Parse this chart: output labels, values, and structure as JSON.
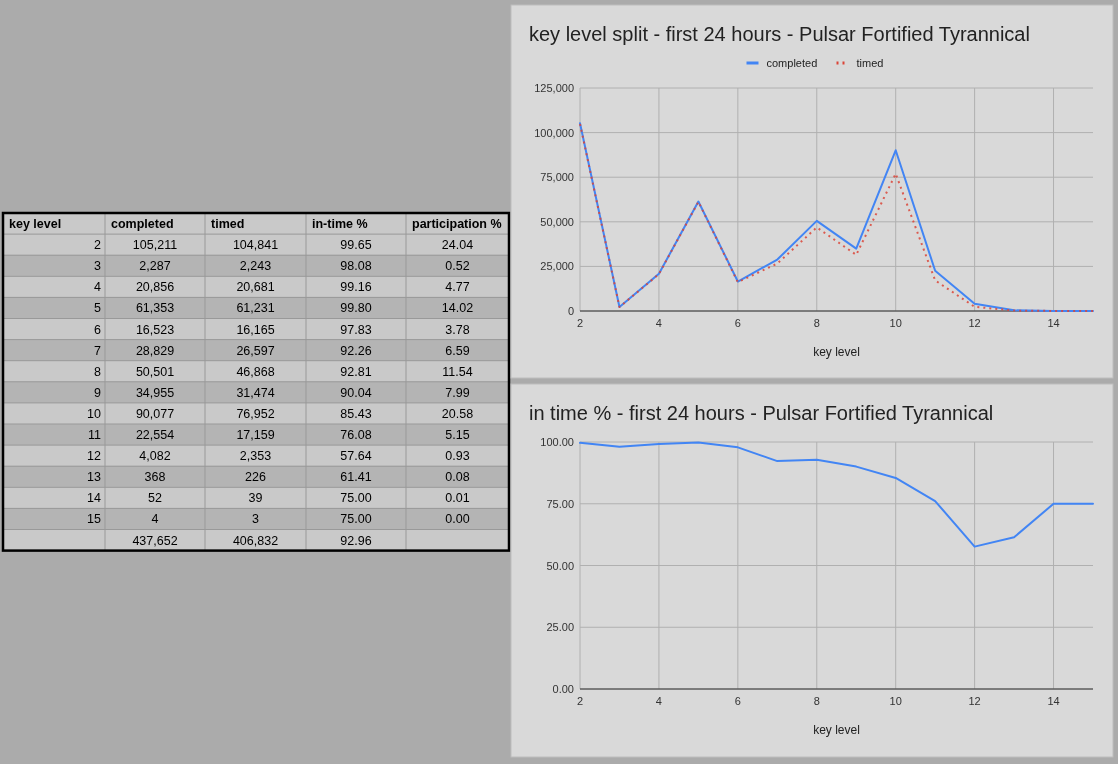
{
  "chart_data": [
    {
      "type": "heatmap",
      "ylabel": "key level",
      "categories": [
        "completed",
        "timed",
        "in-time %",
        "participation %"
      ],
      "y_categories": [
        "2",
        "3",
        "4",
        "5",
        "6",
        "7",
        "8",
        "9",
        "10",
        "11",
        "12",
        "13",
        "14",
        "15",
        null
      ],
      "cells": [
        [
          105211,
          104841,
          99.65,
          24.04
        ],
        [
          2287,
          2243,
          98.08,
          0.52
        ],
        [
          20856,
          20681,
          99.16,
          4.77
        ],
        [
          61353,
          61231,
          99.8,
          14.02
        ],
        [
          16523,
          16165,
          97.83,
          3.78
        ],
        [
          28829,
          26597,
          92.26,
          6.59
        ],
        [
          50501,
          46868,
          92.81,
          11.54
        ],
        [
          34955,
          31474,
          90.04,
          7.99
        ],
        [
          90077,
          76952,
          85.43,
          20.58
        ],
        [
          22554,
          17159,
          76.08,
          5.15
        ],
        [
          4082,
          2353,
          57.64,
          0.93
        ],
        [
          368,
          226,
          61.41,
          0.08
        ],
        [
          52,
          39,
          75,
          0.01
        ],
        [
          4,
          3,
          75,
          0
        ],
        [
          437652,
          406832,
          92.96,
          null
        ]
      ],
      "cell_labels": [
        [
          "105,211",
          "104,841",
          "99.65",
          "24.04"
        ],
        [
          "2,287",
          "2,243",
          "98.08",
          "0.52"
        ],
        [
          "20,856",
          "20,681",
          "99.16",
          "4.77"
        ],
        [
          "61,353",
          "61,231",
          "99.80",
          "14.02"
        ],
        [
          "16,523",
          "16,165",
          "97.83",
          "3.78"
        ],
        [
          "28,829",
          "26,597",
          "92.26",
          "6.59"
        ],
        [
          "50,501",
          "46,868",
          "92.81",
          "11.54"
        ],
        [
          "34,955",
          "31,474",
          "90.04",
          "7.99"
        ],
        [
          "90,077",
          "76,952",
          "85.43",
          "20.58"
        ],
        [
          "22,554",
          "17,159",
          "76.08",
          "5.15"
        ],
        [
          "4,082",
          "2,353",
          "57.64",
          "0.93"
        ],
        [
          "368",
          "226",
          "61.41",
          "0.08"
        ],
        [
          "52",
          "39",
          "75.00",
          "0.01"
        ],
        [
          "4",
          "3",
          "75.00",
          "0.00"
        ],
        [
          "437,652",
          "406,832",
          "92.96",
          null
        ]
      ]
    },
    {
      "type": "line",
      "title": "key level split - first 24 hours - Pulsar Fortified Tyrannical",
      "xlabel": "key level",
      "x": [
        2,
        3,
        4,
        5,
        6,
        7,
        8,
        9,
        10,
        11,
        12,
        13,
        14,
        15
      ],
      "series": [
        {
          "name": "completed",
          "color": "#4285f4",
          "line_style": "solid",
          "values": [
            105211,
            2287,
            20856,
            61353,
            16523,
            28829,
            50501,
            34955,
            90077,
            22554,
            4082,
            368,
            52,
            4
          ]
        },
        {
          "name": "timed",
          "color": "#db4437",
          "line_style": "dotted",
          "values": [
            104841,
            2243,
            20681,
            61231,
            16165,
            26597,
            46868,
            31474,
            76952,
            17159,
            2353,
            226,
            39,
            3
          ]
        }
      ],
      "xlim": [
        2,
        15
      ],
      "xticks": [
        2,
        4,
        6,
        8,
        10,
        12,
        14
      ],
      "ylim": [
        0,
        125000
      ],
      "yticks": [
        {
          "value": 0,
          "label": "0"
        },
        {
          "value": 25000,
          "label": "25,000"
        },
        {
          "value": 50000,
          "label": "50,000"
        },
        {
          "value": 75000,
          "label": "75,000"
        },
        {
          "value": 100000,
          "label": "100,000"
        },
        {
          "value": 125000,
          "label": "125,000"
        }
      ],
      "grid": true,
      "legend": "top"
    },
    {
      "type": "line",
      "title": "in time % - first 24 hours - Pulsar Fortified Tyrannical",
      "xlabel": "key level",
      "x": [
        2,
        3,
        4,
        5,
        6,
        7,
        8,
        9,
        10,
        11,
        12,
        13,
        14,
        15
      ],
      "series": [
        {
          "color": "#4285f4",
          "line_style": "solid",
          "values": [
            99.65,
            98.08,
            99.16,
            99.8,
            97.83,
            92.26,
            92.81,
            90.04,
            85.43,
            76.08,
            57.64,
            61.41,
            75,
            75
          ]
        }
      ],
      "xlim": [
        2,
        15
      ],
      "xticks": [
        2,
        4,
        6,
        8,
        10,
        12,
        14
      ],
      "ylim": [
        0,
        100
      ],
      "yticks": [
        {
          "value": 0,
          "label": "0.00"
        },
        {
          "value": 25,
          "label": "25.00"
        },
        {
          "value": 50,
          "label": "50.00"
        },
        {
          "value": 75,
          "label": "75.00"
        },
        {
          "value": 100,
          "label": "100.00"
        }
      ],
      "grid": true
    }
  ]
}
